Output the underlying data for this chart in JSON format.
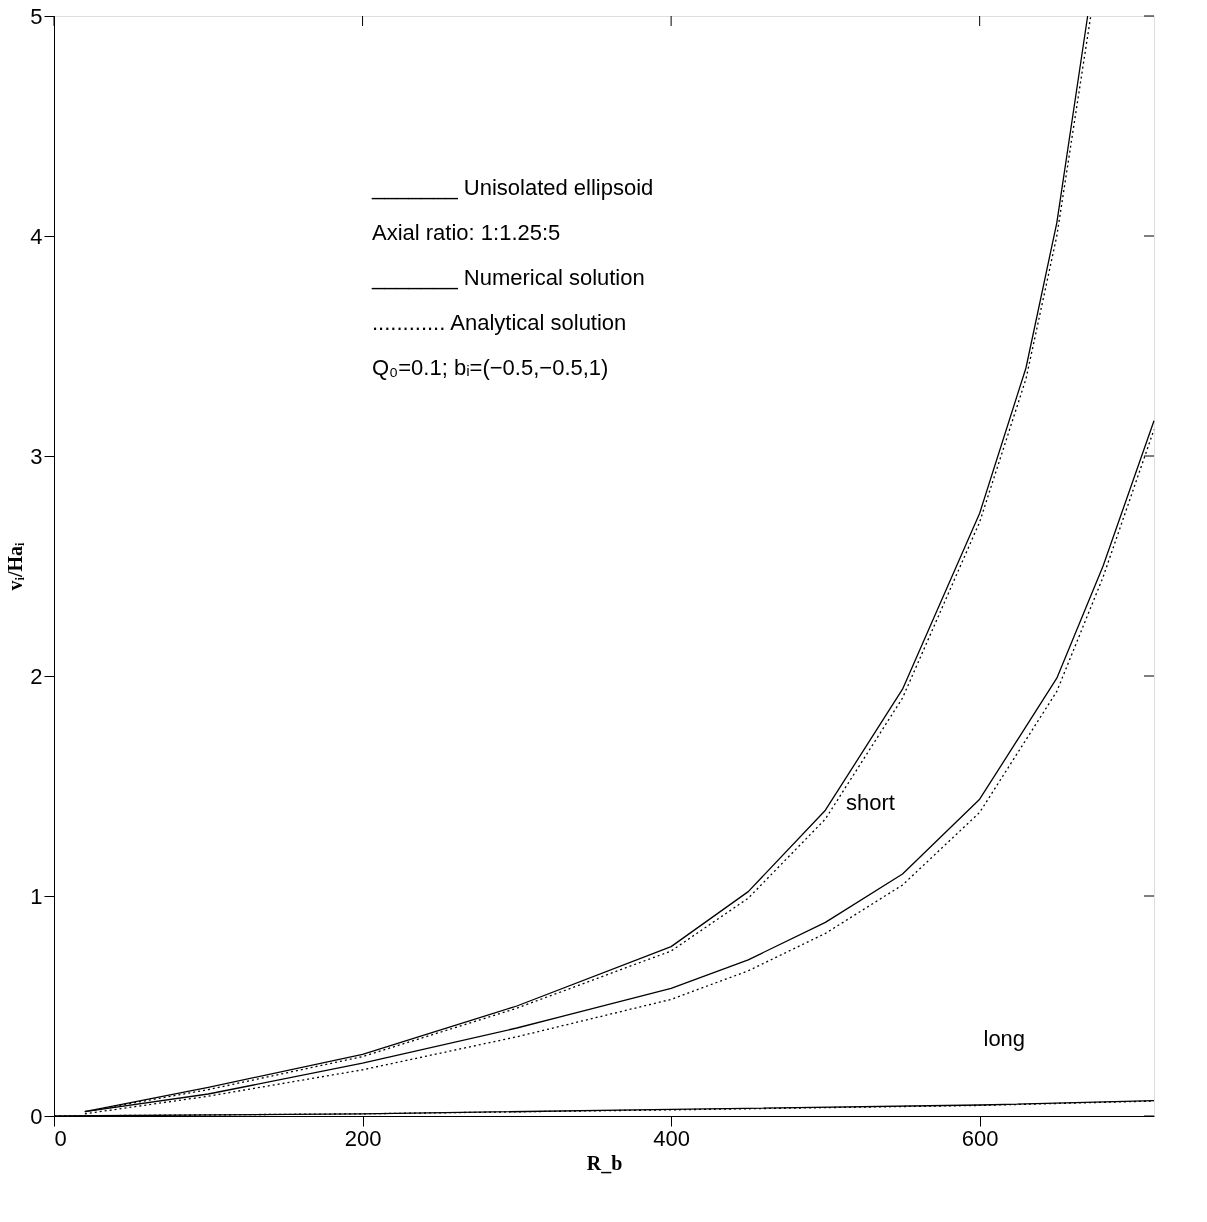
{
  "chart_data": {
    "type": "line",
    "xlabel": "R_b",
    "ylabel": "vᵢ/Haᵢ",
    "xlim": [
      0,
      713
    ],
    "ylim": [
      0,
      5
    ],
    "xticks": [
      0,
      200,
      400,
      600
    ],
    "yticks": [
      0,
      1,
      2,
      3,
      4,
      5
    ],
    "grid": false,
    "series": [
      {
        "color": "#000000",
        "line_style": "solid",
        "x": [
          20,
          100,
          200,
          300,
          400,
          450,
          500,
          550,
          600,
          630,
          650,
          670
        ],
        "values": [
          0.02,
          0.13,
          0.28,
          0.5,
          0.77,
          1.02,
          1.39,
          1.94,
          2.74,
          3.4,
          4.06,
          5.0
        ]
      },
      {
        "color": "#000000",
        "line_style": "dotted",
        "x": [
          20,
          100,
          200,
          300,
          400,
          450,
          500,
          550,
          600,
          630,
          650,
          672
        ],
        "values": [
          0.02,
          0.12,
          0.27,
          0.49,
          0.75,
          0.99,
          1.35,
          1.9,
          2.7,
          3.35,
          4.0,
          5.0
        ]
      },
      {
        "color": "#000000",
        "line_style": "solid",
        "x": [
          20,
          100,
          200,
          300,
          400,
          450,
          500,
          550,
          600,
          650,
          680,
          713
        ],
        "values": [
          0.02,
          0.1,
          0.24,
          0.4,
          0.58,
          0.71,
          0.88,
          1.1,
          1.44,
          1.99,
          2.5,
          3.16
        ]
      },
      {
        "color": "#000000",
        "line_style": "dotted",
        "x": [
          20,
          100,
          200,
          300,
          400,
          450,
          500,
          550,
          600,
          650,
          680,
          713
        ],
        "values": [
          0.01,
          0.09,
          0.21,
          0.36,
          0.53,
          0.66,
          0.83,
          1.05,
          1.38,
          1.93,
          2.45,
          3.12
        ]
      },
      {
        "color": "#000000",
        "line_style": "solid",
        "x": [
          0,
          200,
          400,
          600,
          713
        ],
        "values": [
          0.0,
          0.01,
          0.03,
          0.05,
          0.07
        ]
      },
      {
        "color": "#000000",
        "line_style": "dotted",
        "x": [
          0,
          200,
          400,
          600,
          713
        ],
        "values": [
          0.0,
          0.01,
          0.028,
          0.048,
          0.068
        ]
      }
    ],
    "annotations": [
      "_______ Unisolated ellipsoid",
      "Axial ratio: 1:1.25:5",
      "_______ Numerical solution",
      "............ Analytical solution",
      "Q₀=0.1;  bᵢ=(−0.5,−0.5,1)",
      "short",
      "long"
    ]
  }
}
